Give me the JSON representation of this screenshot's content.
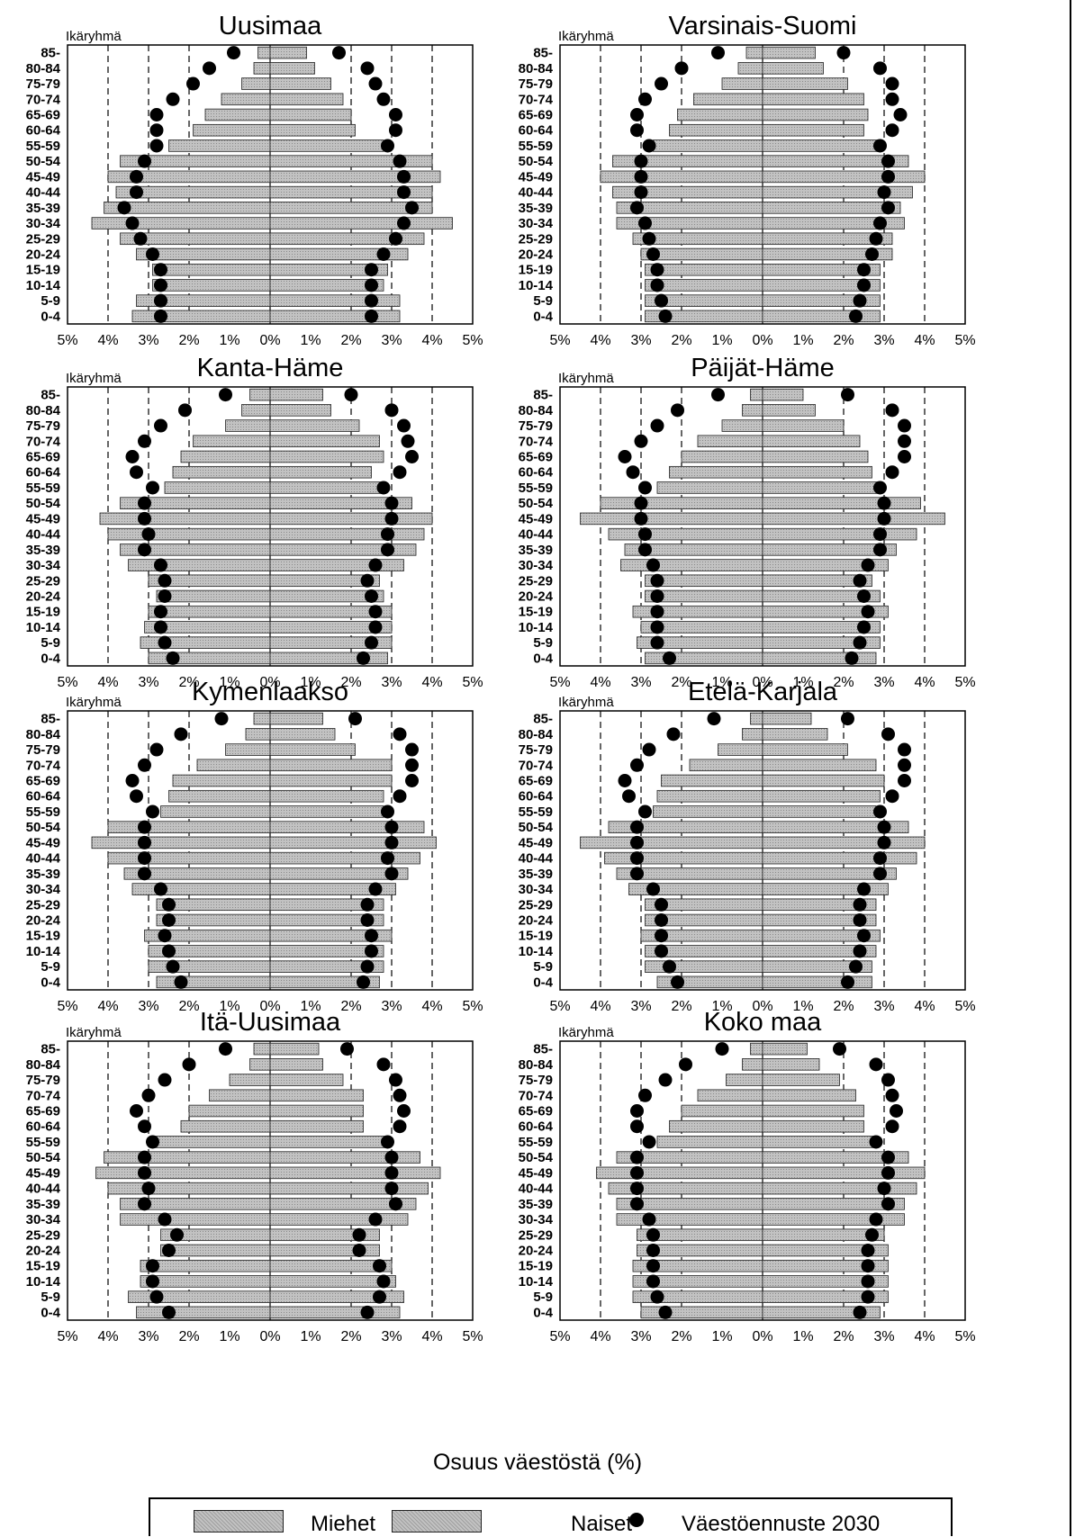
{
  "age_label": "Ikäryhmä",
  "age_groups": [
    "0-4",
    "5-9",
    "10-14",
    "15-19",
    "20-24",
    "25-29",
    "30-34",
    "35-39",
    "40-44",
    "45-49",
    "50-54",
    "55-59",
    "60-64",
    "65-69",
    "70-74",
    "75-79",
    "80-84",
    "85-"
  ],
  "x_ticks": [
    "5%",
    "4%",
    "3%",
    "2%",
    "1%",
    "0%",
    "1%",
    "2%",
    "3%",
    "4%",
    "5%"
  ],
  "x_axis_title": "Osuus väestöstä (%)",
  "legend": {
    "men": "Miehet",
    "women": "Naiset",
    "forecast": "Väestöennuste 2030"
  },
  "colors": {
    "bar_fill": "#c2c2c2",
    "bar_edge": "#222222",
    "dot": "#000000"
  },
  "chart_data": [
    {
      "type": "population-pyramid",
      "title": "Uusimaa",
      "xlim": [
        -5,
        5
      ],
      "men": [
        3.4,
        3.3,
        2.9,
        2.9,
        3.3,
        3.7,
        4.4,
        4.1,
        3.8,
        4.0,
        3.7,
        2.5,
        1.9,
        1.6,
        1.2,
        0.7,
        0.4,
        0.3
      ],
      "women": [
        3.2,
        3.2,
        2.8,
        2.9,
        3.4,
        3.8,
        4.5,
        4.0,
        4.0,
        4.2,
        4.0,
        2.8,
        2.1,
        2.0,
        1.8,
        1.5,
        1.1,
        0.9
      ],
      "forecast_men": [
        2.7,
        2.7,
        2.7,
        2.7,
        2.9,
        3.2,
        3.4,
        3.6,
        3.3,
        3.3,
        3.1,
        2.8,
        2.8,
        2.8,
        2.4,
        1.9,
        1.5,
        0.9
      ],
      "forecast_women": [
        2.5,
        2.5,
        2.5,
        2.5,
        2.8,
        3.1,
        3.3,
        3.5,
        3.3,
        3.3,
        3.2,
        2.9,
        3.1,
        3.1,
        2.8,
        2.6,
        2.4,
        1.7
      ]
    },
    {
      "type": "population-pyramid",
      "title": "Varsinais-Suomi",
      "xlim": [
        -5,
        5
      ],
      "men": [
        2.9,
        2.9,
        2.9,
        2.9,
        3.0,
        3.2,
        3.6,
        3.6,
        3.7,
        4.0,
        3.7,
        2.7,
        2.3,
        2.1,
        1.7,
        1.0,
        0.6,
        0.4
      ],
      "women": [
        2.9,
        2.9,
        2.9,
        2.9,
        3.2,
        3.2,
        3.5,
        3.4,
        3.7,
        4.0,
        3.6,
        2.9,
        2.5,
        2.6,
        2.5,
        2.1,
        1.5,
        1.3
      ],
      "forecast_men": [
        2.4,
        2.5,
        2.6,
        2.6,
        2.7,
        2.8,
        2.9,
        3.1,
        3.0,
        3.0,
        3.0,
        2.8,
        3.1,
        3.1,
        2.9,
        2.5,
        2.0,
        1.1
      ],
      "forecast_women": [
        2.3,
        2.4,
        2.5,
        2.5,
        2.7,
        2.8,
        2.9,
        3.1,
        3.0,
        3.1,
        3.1,
        2.9,
        3.2,
        3.4,
        3.2,
        3.2,
        2.9,
        2.0
      ]
    },
    {
      "type": "population-pyramid",
      "title": "Kanta-Häme",
      "xlim": [
        -5,
        5
      ],
      "men": [
        3.0,
        3.2,
        3.1,
        3.0,
        2.8,
        3.0,
        3.5,
        3.7,
        4.0,
        4.2,
        3.7,
        2.6,
        2.4,
        2.2,
        1.9,
        1.1,
        0.7,
        0.5
      ],
      "women": [
        2.9,
        3.0,
        3.0,
        3.0,
        2.8,
        2.7,
        3.3,
        3.6,
        3.8,
        4.0,
        3.5,
        2.8,
        2.5,
        2.8,
        2.7,
        2.2,
        1.5,
        1.3
      ],
      "forecast_men": [
        2.4,
        2.6,
        2.7,
        2.7,
        2.6,
        2.6,
        2.7,
        3.1,
        3.0,
        3.1,
        3.1,
        2.9,
        3.3,
        3.4,
        3.1,
        2.7,
        2.1,
        1.1
      ],
      "forecast_women": [
        2.3,
        2.5,
        2.6,
        2.6,
        2.5,
        2.4,
        2.6,
        2.9,
        2.9,
        3.0,
        3.0,
        2.8,
        3.2,
        3.5,
        3.4,
        3.3,
        3.0,
        2.0
      ]
    },
    {
      "type": "population-pyramid",
      "title": "Päijät-Häme",
      "xlim": [
        -5,
        5
      ],
      "men": [
        2.9,
        3.1,
        3.0,
        3.2,
        2.9,
        2.9,
        3.5,
        3.4,
        3.8,
        4.5,
        4.0,
        2.6,
        2.3,
        2.0,
        1.6,
        1.0,
        0.5,
        0.3
      ],
      "women": [
        2.8,
        2.9,
        2.9,
        3.1,
        2.9,
        2.7,
        3.1,
        3.3,
        3.8,
        4.5,
        3.9,
        2.9,
        2.7,
        2.6,
        2.4,
        2.0,
        1.3,
        1.0
      ],
      "forecast_men": [
        2.3,
        2.6,
        2.6,
        2.6,
        2.6,
        2.6,
        2.7,
        2.9,
        2.9,
        3.0,
        3.0,
        2.9,
        3.2,
        3.4,
        3.0,
        2.6,
        2.1,
        1.1
      ],
      "forecast_women": [
        2.2,
        2.4,
        2.5,
        2.6,
        2.5,
        2.4,
        2.6,
        2.9,
        2.9,
        3.0,
        3.0,
        2.9,
        3.2,
        3.5,
        3.5,
        3.5,
        3.2,
        2.1
      ]
    },
    {
      "type": "population-pyramid",
      "title": "Kymenlaakso",
      "xlim": [
        -5,
        5
      ],
      "men": [
        2.8,
        3.0,
        3.0,
        3.1,
        2.8,
        2.8,
        3.4,
        3.6,
        4.0,
        4.4,
        4.0,
        2.7,
        2.5,
        2.4,
        1.8,
        1.1,
        0.6,
        0.4
      ],
      "women": [
        2.7,
        2.8,
        2.8,
        3.0,
        2.8,
        2.8,
        3.1,
        3.4,
        3.7,
        4.1,
        3.8,
        2.8,
        2.8,
        3.0,
        3.0,
        2.1,
        1.6,
        1.3
      ],
      "forecast_men": [
        2.2,
        2.4,
        2.5,
        2.6,
        2.5,
        2.5,
        2.7,
        3.1,
        3.1,
        3.1,
        3.1,
        2.9,
        3.3,
        3.4,
        3.1,
        2.8,
        2.2,
        1.2
      ],
      "forecast_women": [
        2.3,
        2.4,
        2.5,
        2.5,
        2.4,
        2.4,
        2.6,
        3.0,
        2.9,
        3.0,
        3.0,
        2.9,
        3.2,
        3.5,
        3.5,
        3.5,
        3.2,
        2.1
      ]
    },
    {
      "type": "population-pyramid",
      "title": "Etelä-Karjala",
      "xlim": [
        -5,
        5
      ],
      "men": [
        2.6,
        2.9,
        2.9,
        3.0,
        2.9,
        2.9,
        3.3,
        3.6,
        3.9,
        4.5,
        3.8,
        2.7,
        2.6,
        2.5,
        1.8,
        1.1,
        0.5,
        0.3
      ],
      "women": [
        2.7,
        2.7,
        2.8,
        2.9,
        2.8,
        2.8,
        3.1,
        3.3,
        3.8,
        4.0,
        3.6,
        2.8,
        2.9,
        3.0,
        2.8,
        2.1,
        1.6,
        1.2
      ],
      "forecast_men": [
        2.1,
        2.3,
        2.5,
        2.5,
        2.5,
        2.5,
        2.7,
        3.1,
        3.1,
        3.1,
        3.1,
        2.9,
        3.3,
        3.4,
        3.1,
        2.8,
        2.2,
        1.2
      ],
      "forecast_women": [
        2.1,
        2.3,
        2.4,
        2.5,
        2.4,
        2.4,
        2.5,
        2.9,
        2.9,
        3.0,
        3.0,
        2.9,
        3.2,
        3.5,
        3.5,
        3.5,
        3.1,
        2.1
      ]
    },
    {
      "type": "population-pyramid",
      "title": "Itä-Uusimaa",
      "xlim": [
        -5,
        5
      ],
      "men": [
        3.3,
        3.5,
        3.2,
        3.2,
        2.7,
        2.7,
        3.7,
        3.7,
        4.0,
        4.3,
        4.1,
        2.9,
        2.2,
        2.0,
        1.5,
        1.0,
        0.5,
        0.4
      ],
      "women": [
        3.2,
        3.3,
        3.1,
        3.0,
        2.7,
        2.7,
        3.4,
        3.6,
        3.9,
        4.2,
        3.7,
        2.9,
        2.3,
        2.3,
        2.3,
        1.8,
        1.3,
        1.2
      ],
      "forecast_men": [
        2.5,
        2.8,
        2.9,
        2.9,
        2.5,
        2.3,
        2.6,
        3.1,
        3.0,
        3.1,
        3.1,
        2.9,
        3.1,
        3.3,
        3.0,
        2.6,
        2.0,
        1.1
      ],
      "forecast_women": [
        2.4,
        2.7,
        2.8,
        2.7,
        2.2,
        2.2,
        2.6,
        3.1,
        3.0,
        3.0,
        3.0,
        2.9,
        3.2,
        3.3,
        3.2,
        3.1,
        2.8,
        1.9
      ]
    },
    {
      "type": "population-pyramid",
      "title": "Koko maa",
      "xlim": [
        -5,
        5
      ],
      "men": [
        3.0,
        3.2,
        3.2,
        3.2,
        3.1,
        3.1,
        3.6,
        3.6,
        3.8,
        4.1,
        3.6,
        2.6,
        2.3,
        2.0,
        1.6,
        0.9,
        0.5,
        0.3
      ],
      "women": [
        2.9,
        3.1,
        3.1,
        3.1,
        3.1,
        3.0,
        3.5,
        3.5,
        3.8,
        4.0,
        3.6,
        2.8,
        2.5,
        2.5,
        2.3,
        1.9,
        1.4,
        1.1
      ],
      "forecast_men": [
        2.4,
        2.6,
        2.7,
        2.7,
        2.7,
        2.7,
        2.8,
        3.1,
        3.1,
        3.1,
        3.1,
        2.8,
        3.1,
        3.1,
        2.9,
        2.4,
        1.9,
        1.0
      ],
      "forecast_women": [
        2.4,
        2.6,
        2.6,
        2.6,
        2.6,
        2.7,
        2.8,
        3.1,
        3.0,
        3.1,
        3.1,
        2.8,
        3.2,
        3.3,
        3.2,
        3.1,
        2.8,
        1.9
      ]
    }
  ]
}
